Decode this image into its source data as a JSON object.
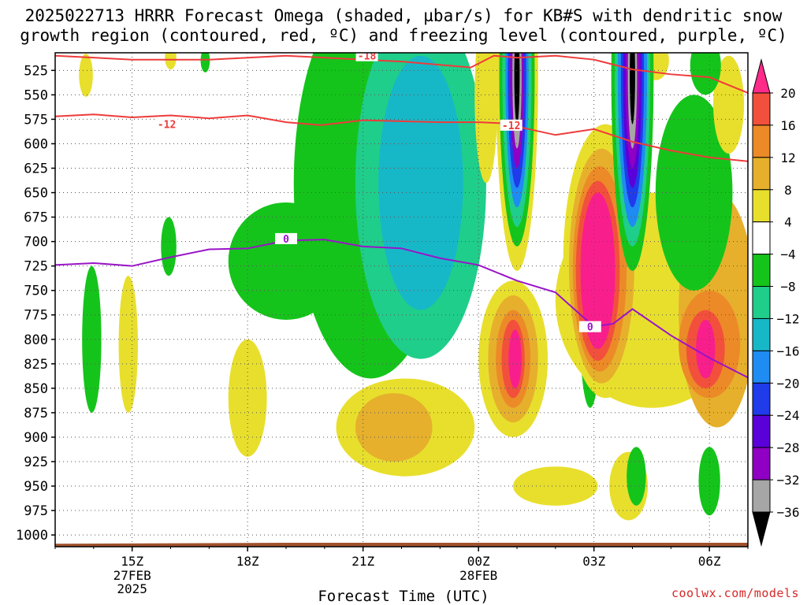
{
  "title_line1": "2025022713 HRRR Forecast Omega (shaded, µbar/s) for KB#S with dendritic snow",
  "title_line2": "growth region (contoured, red, ºC) and freezing level (contoured, purple, ºC)",
  "credit": "coolwx.com/models",
  "chart_data": {
    "type": "time-height",
    "xlabel": "Forecast Time (UTC)",
    "ylabel": "",
    "y_axis_reversed": true,
    "ylim": [
      1012,
      507
    ],
    "y_ticks": [
      525,
      550,
      575,
      600,
      625,
      650,
      675,
      700,
      725,
      750,
      775,
      800,
      825,
      850,
      875,
      900,
      925,
      950,
      975,
      1000
    ],
    "x_range_hours": [
      -2,
      16
    ],
    "x_ticks": [
      {
        "h": 0,
        "label": "15Z",
        "sub1": "27FEB",
        "sub2": "2025"
      },
      {
        "h": 3,
        "label": "18Z",
        "sub1": "",
        "sub2": ""
      },
      {
        "h": 6,
        "label": "21Z",
        "sub1": "",
        "sub2": ""
      },
      {
        "h": 9,
        "label": "00Z",
        "sub1": "28FEB",
        "sub2": ""
      },
      {
        "h": 12,
        "label": "03Z",
        "sub1": "",
        "sub2": ""
      },
      {
        "h": 15,
        "label": "06Z",
        "sub1": "",
        "sub2": ""
      }
    ],
    "grid": true,
    "colorbar": {
      "levels": [
        -36,
        -32,
        -28,
        -24,
        -20,
        -16,
        -12,
        -8,
        -4,
        4,
        8,
        12,
        16,
        20
      ],
      "colors": [
        "#000000",
        "#a6a6a6",
        "#8f00c4",
        "#5a00d8",
        "#1f3bea",
        "#1e8cf2",
        "#16b8c8",
        "#1fce8a",
        "#15c41b",
        "#ffffff",
        "#e8df2d",
        "#e6b02c",
        "#ec8a28",
        "#f2503c",
        "#f81f8c",
        "#ff2a8a"
      ]
    },
    "dgz_contours": [
      {
        "label": "-18",
        "points": [
          [
            -2,
            510
          ],
          [
            0,
            514
          ],
          [
            2,
            514
          ],
          [
            4,
            510
          ],
          [
            6,
            514
          ],
          [
            7,
            516
          ],
          [
            8.8,
            522
          ],
          [
            9.4,
            510
          ],
          [
            10,
            512
          ],
          [
            11,
            510
          ],
          [
            12,
            514
          ],
          [
            13,
            524
          ],
          [
            14,
            529
          ],
          [
            15,
            532
          ],
          [
            16,
            548
          ]
        ]
      },
      {
        "label": "-12",
        "points": [
          [
            -2,
            572
          ],
          [
            -1,
            570
          ],
          [
            0,
            573
          ],
          [
            1,
            571
          ],
          [
            2,
            574
          ],
          [
            3,
            571
          ],
          [
            4,
            578
          ],
          [
            4.9,
            581
          ],
          [
            6,
            576
          ],
          [
            8,
            578
          ],
          [
            9,
            578
          ],
          [
            9.6,
            579
          ],
          [
            11,
            591
          ],
          [
            12,
            585
          ],
          [
            13,
            598
          ],
          [
            14,
            607
          ],
          [
            15,
            614
          ],
          [
            16,
            618
          ]
        ]
      }
    ],
    "freezing_level": {
      "label": "0",
      "points": [
        [
          -2,
          724
        ],
        [
          -1,
          722
        ],
        [
          0,
          725
        ],
        [
          1,
          716
        ],
        [
          2,
          708
        ],
        [
          3,
          707
        ],
        [
          4,
          699
        ],
        [
          5,
          698
        ],
        [
          6,
          705
        ],
        [
          7,
          707
        ],
        [
          8,
          717
        ],
        [
          9,
          724
        ],
        [
          10,
          740
        ],
        [
          11,
          752
        ],
        [
          12,
          787
        ],
        [
          12.5,
          784
        ],
        [
          13,
          769
        ],
        [
          14,
          796
        ],
        [
          15,
          819
        ],
        [
          16,
          839
        ]
      ]
    },
    "omega_features": [
      {
        "sign": "neg",
        "h": 7.5,
        "p": 570,
        "core": -16,
        "desc": "green ascent column with cyan core 21Z-23Z"
      },
      {
        "sign": "neg",
        "h": 10.0,
        "p": 540,
        "core": -36,
        "desc": "strong ascent column near 01Z"
      },
      {
        "sign": "neg",
        "h": 13.0,
        "p": 540,
        "core": -36,
        "desc": "strong ascent column near 03Z"
      },
      {
        "sign": "pos",
        "h": 12.1,
        "p": 730,
        "core": 20,
        "desc": "magenta descent core near 03Z"
      },
      {
        "sign": "pos",
        "h": 10.0,
        "p": 820,
        "core": 20,
        "desc": "magenta descent core near 01Z"
      },
      {
        "sign": "pos",
        "h": 14.9,
        "p": 810,
        "core": 20,
        "desc": "magenta descent core near 06Z"
      },
      {
        "sign": "pos",
        "h": 6.8,
        "p": 895,
        "core": 12,
        "desc": "orange descent near 22Z"
      }
    ]
  }
}
